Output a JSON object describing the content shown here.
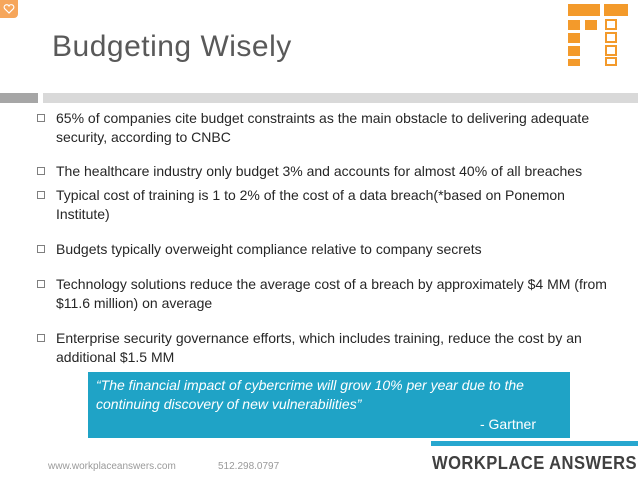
{
  "slide": {
    "title": "Budgeting Wisely",
    "bullets": [
      "65% of companies cite budget constraints as the main obstacle to delivering adequate security, according to CNBC",
      "The healthcare industry only budget 3% and accounts for almost 40% of all breaches",
      "Typical cost of training is 1 to 2% of the cost of a data breach(*based on Ponemon Institute)",
      "Budgets typically overweight compliance relative to company secrets",
      "Technology solutions reduce the average cost of a breach by approximately $4 MM (from $11.6 million) on average",
      "Enterprise security governance efforts, which includes training, reduce the cost by an additional $1.5 MM"
    ],
    "quote": {
      "text": "“The financial impact of cybercrime will grow 10% per year due to the continuing discovery of new vulnerabilities”",
      "attribution": "- Gartner"
    }
  },
  "footer": {
    "url": "www.workplaceanswers.com",
    "phone": "512.298.0797",
    "brand": "WORKPLACE ANSWERS"
  },
  "colors": {
    "accent_orange": "#f39a2b",
    "accent_blue": "#1fa3c6",
    "title_gray": "#595959"
  },
  "icons": {
    "corner": "heart-icon",
    "logo": "workplace-answers-logo-icon",
    "bullet": "square-bullet-icon"
  }
}
